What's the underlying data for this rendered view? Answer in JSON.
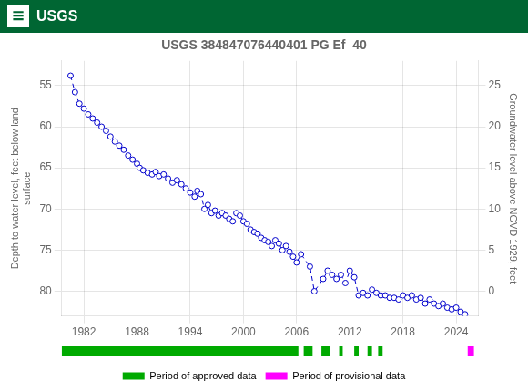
{
  "chart_data": {
    "type": "line",
    "title": "USGS 384847076440401 PG Ef  40",
    "header": {
      "logo": "≡",
      "text": "USGS",
      "color": "#006633"
    },
    "ylabel": "Depth to water level, feet below land\nsurface",
    "y2label": "Groundwater level above NGVD 1929, feet",
    "x": [
      1980.5,
      1981.0,
      1981.5,
      1982.0,
      1982.5,
      1983.0,
      1983.5,
      1984.0,
      1984.5,
      1985.0,
      1985.5,
      1986.0,
      1986.5,
      1987.0,
      1987.5,
      1988.0,
      1988.3,
      1988.7,
      1989.2,
      1989.7,
      1990.1,
      1990.5,
      1991.0,
      1991.5,
      1992.0,
      1992.5,
      1993.0,
      1993.5,
      1994.0,
      1994.5,
      1994.8,
      1995.2,
      1995.6,
      1996.0,
      1996.4,
      1996.8,
      1997.2,
      1997.6,
      1998.0,
      1998.4,
      1998.8,
      1999.2,
      1999.6,
      2000.0,
      2000.4,
      2000.8,
      2001.2,
      2001.6,
      2002.0,
      2002.4,
      2002.8,
      2003.2,
      2003.6,
      2004.0,
      2004.4,
      2004.8,
      2005.2,
      2005.6,
      2006.0,
      2006.5,
      2007.5,
      2008.0,
      2009.0,
      2009.5,
      2010.0,
      2010.5,
      2011.0,
      2011.5,
      2012.0,
      2012.5,
      2013.0,
      2013.5,
      2014.0,
      2014.5,
      2015.0,
      2015.5,
      2016.0,
      2016.5,
      2017.0,
      2017.5,
      2018.0,
      2018.5,
      2019.0,
      2019.5,
      2020.0,
      2020.5,
      2021.0,
      2021.5,
      2022.0,
      2022.5,
      2023.0,
      2023.5,
      2024.0,
      2024.5,
      2025.0
    ],
    "series": [
      {
        "color": "#0000cc",
        "marker": "open circle",
        "line_style": "dashed",
        "values": [
          53.8,
          55.8,
          57.2,
          57.8,
          58.5,
          59.0,
          59.5,
          60.0,
          60.5,
          61.2,
          61.8,
          62.3,
          62.8,
          63.5,
          64.0,
          64.5,
          65.0,
          65.3,
          65.6,
          65.8,
          65.5,
          66.0,
          65.8,
          66.3,
          66.8,
          66.5,
          67.0,
          67.5,
          68.0,
          68.5,
          67.8,
          68.2,
          70.0,
          69.5,
          70.5,
          70.2,
          70.8,
          70.5,
          70.8,
          71.2,
          71.5,
          70.5,
          70.8,
          71.5,
          71.8,
          72.5,
          72.8,
          73.0,
          73.5,
          73.8,
          74.0,
          74.5,
          73.8,
          74.2,
          75.0,
          74.5,
          75.2,
          75.8,
          76.5,
          75.5,
          77.0,
          80.0,
          78.5,
          77.5,
          78.0,
          78.5,
          78.0,
          79.0,
          77.5,
          78.3,
          80.5,
          80.2,
          80.5,
          79.8,
          80.2,
          80.5,
          80.5,
          80.8,
          80.8,
          81.0,
          80.5,
          80.8,
          80.5,
          81.0,
          80.8,
          81.5,
          81.0,
          81.5,
          81.8,
          81.5,
          82.0,
          82.2,
          82.0,
          82.5,
          82.8
        ]
      }
    ],
    "xlim": [
      1979.5,
      2026.5
    ],
    "xticks": [
      1982,
      1988,
      1994,
      2000,
      2006,
      2012,
      2018,
      2024
    ],
    "ylim": [
      83,
      52
    ],
    "yticks": [
      55,
      60,
      65,
      70,
      75,
      80
    ],
    "y2lim": [
      -3,
      28
    ],
    "y2ticks": [
      25,
      20,
      15,
      10,
      5,
      0
    ],
    "grid": true,
    "legend": "bottom",
    "periods": [
      {
        "name": "Period of approved data",
        "color": "#00aa00",
        "ranges": [
          [
            1979.5,
            2006.2
          ],
          [
            2006.8,
            2007.8
          ],
          [
            2008.8,
            2009.8
          ],
          [
            2010.8,
            2011.2
          ],
          [
            2012.5,
            2013.0
          ],
          [
            2014.0,
            2014.5
          ],
          [
            2015.2,
            2015.7
          ]
        ]
      },
      {
        "name": "Period of provisional data",
        "color": "#ff00ff",
        "ranges": [
          [
            2025.3,
            2026.0
          ]
        ]
      }
    ]
  }
}
